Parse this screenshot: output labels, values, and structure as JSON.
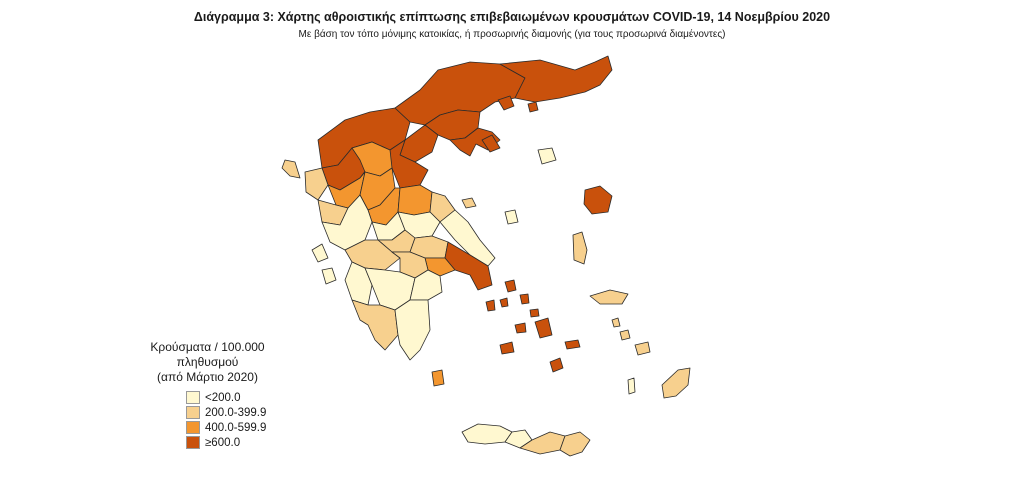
{
  "title": "Διάγραμμα 3: Χάρτης αθροιστικής επίπτωσης επιβεβαιωμένων κρουσμάτων COVID-19, 14 Νοεμβρίου 2020",
  "subtitle": "Με βάση τον τόπο μόνιμης κατοικίας, ή προσωρινής διαμονής (για τους προσωρινά διαμένοντες)",
  "legend": {
    "title_line1": "Κρούσματα / 100.000 πληθυσμού",
    "title_line2": "(από Μάρτιο 2020)",
    "classes": [
      {
        "label": "<200.0",
        "color": "#fff8d0"
      },
      {
        "label": "200.0-399.9",
        "color": "#f7d08e"
      },
      {
        "label": "400.0-599.9",
        "color": "#f3962f"
      },
      {
        "label": "≥600.0",
        "color": "#c9510c"
      }
    ]
  },
  "colors": {
    "c1": "#fff8d0",
    "c2": "#f7d08e",
    "c3": "#f3962f",
    "c4": "#c9510c",
    "border": "#2b2b2b"
  }
}
